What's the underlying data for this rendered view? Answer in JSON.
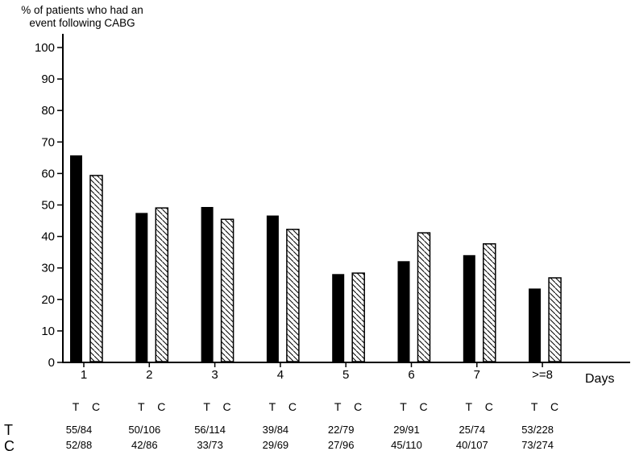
{
  "colors": {
    "foreground": "#000000",
    "background": "#ffffff"
  },
  "chart_data": {
    "type": "bar",
    "title": "% of patients who had an\nevent following CABG",
    "xlabel": "Days",
    "ylabel": "",
    "ylim": [
      0,
      100
    ],
    "ytick_step": 10,
    "grid": false,
    "legend_position": "none",
    "categories": [
      "1",
      "2",
      "3",
      "4",
      "5",
      "6",
      "7",
      ">=8"
    ],
    "series": [
      {
        "name": "T",
        "style": "solid",
        "color": "#000000",
        "values": [
          65.5,
          47.2,
          49.1,
          46.4,
          27.8,
          31.9,
          33.8,
          23.2
        ]
      },
      {
        "name": "C",
        "style": "hatched",
        "color": "#000000",
        "values": [
          59.1,
          48.8,
          45.2,
          42.0,
          28.1,
          40.9,
          37.4,
          26.6
        ]
      }
    ],
    "pair_header_labels": [
      "T",
      "C"
    ],
    "counts_table": {
      "row_labels": [
        "T",
        "C"
      ],
      "rows": [
        [
          "55/84",
          "50/106",
          "56/114",
          "39/84",
          "22/79",
          "29/91",
          "25/74",
          "53/228"
        ],
        [
          "52/88",
          "42/86",
          "33/73",
          "29/69",
          "27/96",
          "45/110",
          "40/107",
          "73/274"
        ]
      ]
    }
  }
}
